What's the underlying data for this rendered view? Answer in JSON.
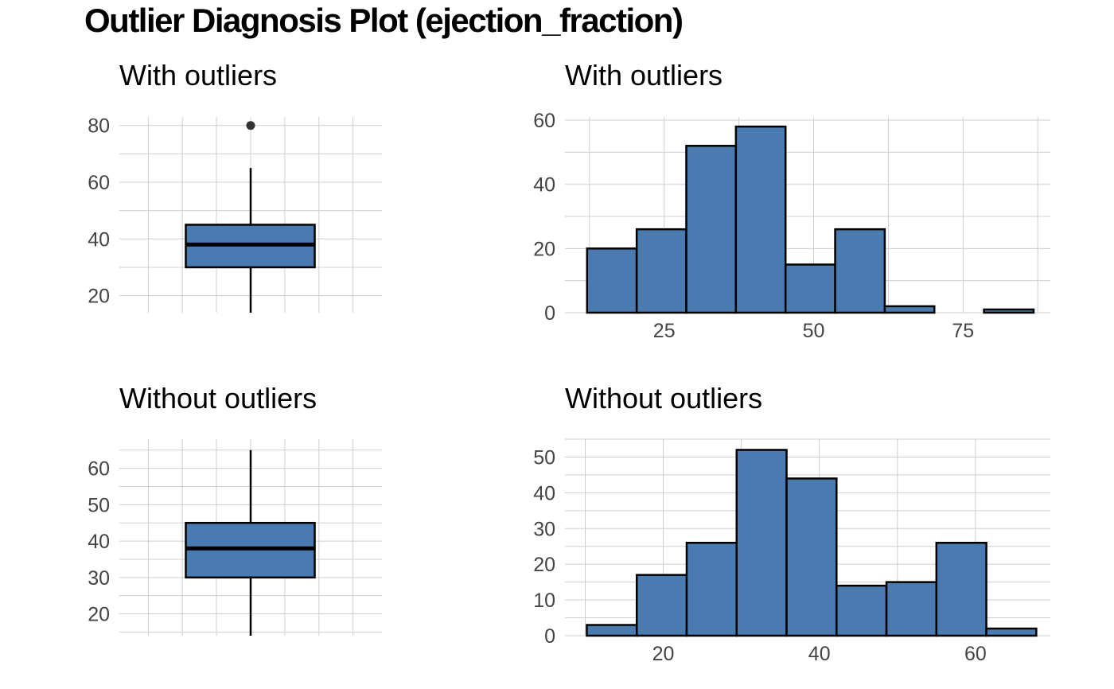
{
  "title": "Outlier Diagnosis Plot (ejection_fraction)",
  "colors": {
    "fill": "#4a7bb0",
    "stroke": "#000000",
    "grid": "#cfcfcf",
    "outlier": "#333333"
  },
  "chart_data": [
    {
      "type": "box",
      "title": "With outliers",
      "ylim": [
        14,
        83
      ],
      "yticks": [
        20,
        40,
        60,
        80
      ],
      "box": {
        "whisker_low": 14,
        "q1": 30,
        "median": 38,
        "q3": 45,
        "whisker_high": 65
      },
      "outliers": [
        80
      ],
      "grid": true
    },
    {
      "type": "bar",
      "title": "With outliers",
      "xlim": [
        8.4,
        89.6
      ],
      "ylim": [
        0,
        61
      ],
      "xticks": [
        25,
        50,
        75
      ],
      "yticks": [
        0,
        20,
        40,
        60
      ],
      "bin_edges": [
        12.1,
        20.4,
        28.7,
        37.0,
        45.3,
        53.6,
        61.9,
        70.2,
        78.5,
        86.8
      ],
      "values": [
        20,
        26,
        52,
        58,
        15,
        26,
        2,
        0,
        1
      ],
      "grid": true
    },
    {
      "type": "box",
      "title": "Without outliers",
      "ylim": [
        14,
        68
      ],
      "yticks": [
        20,
        30,
        40,
        50,
        60
      ],
      "box": {
        "whisker_low": 14,
        "q1": 30,
        "median": 38,
        "q3": 45,
        "whisker_high": 65
      },
      "outliers": [],
      "grid": true
    },
    {
      "type": "bar",
      "title": "Without outliers",
      "xlim": [
        7.4,
        69.6
      ],
      "ylim": [
        0,
        55
      ],
      "xticks": [
        20,
        40,
        60
      ],
      "yticks": [
        0,
        10,
        20,
        30,
        40,
        50
      ],
      "bin_edges": [
        10.2,
        16.6,
        23.0,
        29.4,
        35.8,
        42.2,
        48.6,
        55.0,
        61.4,
        67.8
      ],
      "values": [
        3,
        17,
        26,
        52,
        44,
        14,
        15,
        26,
        2
      ],
      "grid": true
    }
  ]
}
